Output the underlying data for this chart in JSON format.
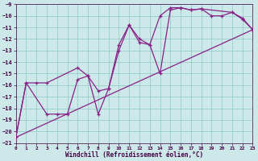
{
  "xlabel": "Windchill (Refroidissement éolien,°C)",
  "background_color": "#cce8e8",
  "grid_color": "#99cccc",
  "line_color": "#882288",
  "ylim": [
    -21,
    -9
  ],
  "xlim": [
    0,
    23
  ],
  "yticks": [
    -21,
    -20,
    -19,
    -18,
    -17,
    -16,
    -15,
    -14,
    -13,
    -12,
    -11,
    -10,
    -9
  ],
  "xticks": [
    0,
    1,
    2,
    3,
    4,
    5,
    6,
    7,
    8,
    9,
    10,
    11,
    12,
    13,
    14,
    15,
    16,
    17,
    18,
    19,
    20,
    21,
    22,
    23
  ],
  "series1_x": [
    0,
    1,
    3,
    4,
    5,
    6,
    7,
    8,
    9,
    10,
    11,
    12,
    13,
    14,
    15,
    16,
    17,
    18,
    21,
    22,
    23
  ],
  "series1_y": [
    -20.5,
    -15.8,
    -18.5,
    -18.5,
    -18.5,
    -15.5,
    -15.2,
    -18.5,
    -16.3,
    -12.5,
    -10.8,
    -12.3,
    -12.5,
    -15.0,
    -9.5,
    -9.3,
    -9.5,
    -9.4,
    -9.7,
    -10.2,
    -11.2
  ],
  "series2_x": [
    0,
    1,
    2,
    3,
    6,
    7,
    8,
    9,
    10,
    11,
    12,
    13,
    14,
    15,
    16,
    17,
    18,
    19,
    20,
    21,
    22,
    23
  ],
  "series2_y": [
    -20.5,
    -15.8,
    -15.8,
    -15.8,
    -14.5,
    -15.2,
    -16.5,
    -16.3,
    -13.0,
    -10.8,
    -12.0,
    -12.5,
    -10.0,
    -9.3,
    -9.3,
    -9.5,
    -9.4,
    -10.0,
    -10.0,
    -9.7,
    -10.3,
    -11.2
  ],
  "series3_x": [
    0,
    23
  ],
  "series3_y": [
    -20.5,
    -11.2
  ]
}
